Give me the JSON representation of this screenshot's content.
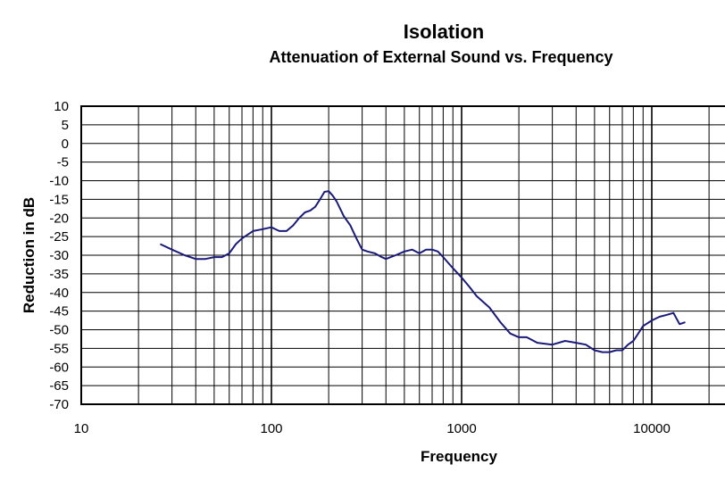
{
  "chart_data": {
    "type": "line",
    "title": "Isolation",
    "subtitle": "Attenuation of External Sound vs. Frequency",
    "xlabel": "Frequency",
    "ylabel": "Reduction in dB",
    "x_scale": "log",
    "xlim": [
      10,
      20000
    ],
    "ylim": [
      -70,
      10
    ],
    "x_ticks": [
      "10",
      "100",
      "1000",
      "10000"
    ],
    "y_ticks": [
      "10",
      "5",
      "0",
      "-5",
      "-10",
      "-15",
      "-20",
      "-25",
      "-30",
      "-35",
      "-40",
      "-45",
      "-50",
      "-55",
      "-60",
      "-65",
      "-70"
    ],
    "grid": true,
    "legend": "none",
    "line_color": "#1a1a7a",
    "series": [
      {
        "x": [
          26,
          30,
          35,
          40,
          45,
          50,
          55,
          60,
          65,
          70,
          80,
          90,
          100,
          110,
          120,
          130,
          140,
          150,
          160,
          170,
          180,
          190,
          200,
          210,
          220,
          240,
          260,
          280,
          300,
          320,
          350,
          380,
          400,
          450,
          500,
          550,
          600,
          650,
          700,
          750,
          800,
          900,
          1000,
          1100,
          1200,
          1400,
          1600,
          1800,
          2000,
          2200,
          2500,
          3000,
          3500,
          4000,
          4500,
          5000,
          5500,
          6000,
          6500,
          7000,
          7500,
          8000,
          9000,
          10000,
          11000,
          12000,
          13000,
          14000,
          15000
        ],
        "y": [
          -27,
          -28.5,
          -30,
          -31,
          -31,
          -30.5,
          -30.5,
          -29.5,
          -27,
          -25.5,
          -23.5,
          -23,
          -22.5,
          -23.5,
          -23.5,
          -22,
          -20,
          -18.5,
          -18,
          -17,
          -15,
          -13,
          -12.8,
          -14,
          -15.5,
          -19.5,
          -22,
          -25.5,
          -28.5,
          -29,
          -29.5,
          -30.5,
          -31,
          -30,
          -29,
          -28.5,
          -29.5,
          -28.5,
          -28.5,
          -29,
          -30.5,
          -33.5,
          -36,
          -38.5,
          -41,
          -44,
          -48,
          -51,
          -52,
          -52,
          -53.5,
          -54,
          -53,
          -53.5,
          -54,
          -55.5,
          -56,
          -56,
          -55.5,
          -55.5,
          -54,
          -53,
          -49,
          -47.5,
          -46.5,
          -46,
          -45.5,
          -48.5,
          -48
        ]
      }
    ]
  }
}
